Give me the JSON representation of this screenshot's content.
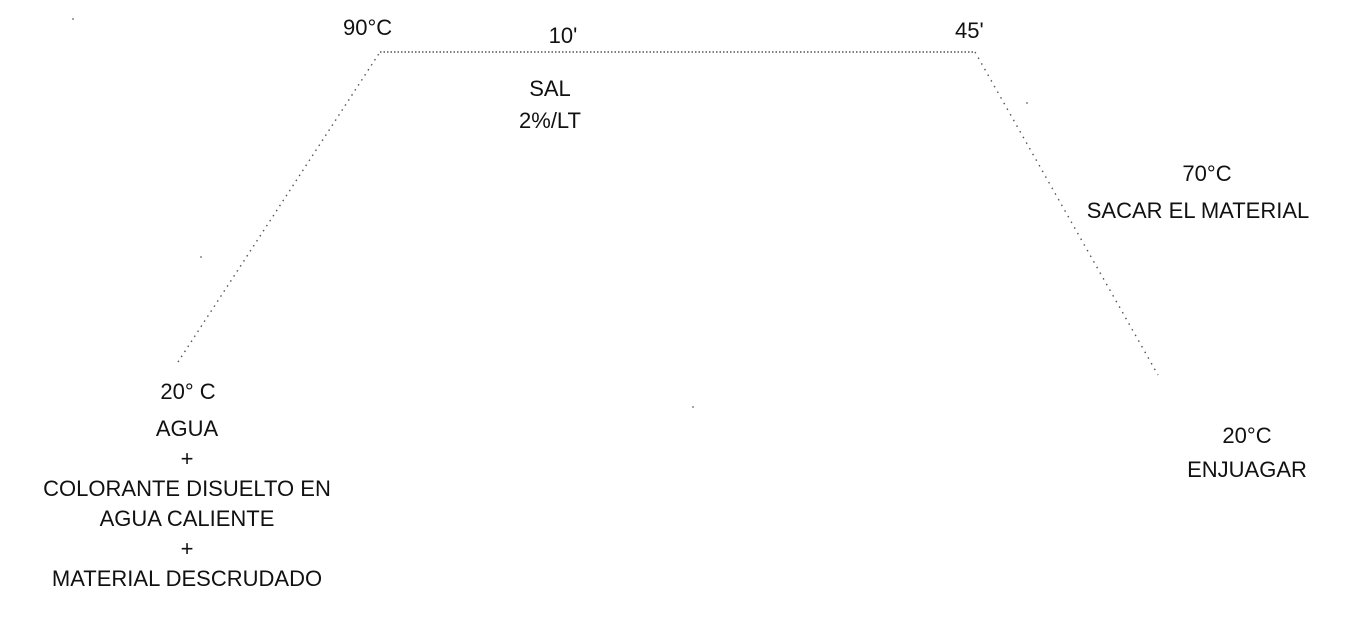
{
  "labels": {
    "peak_temp": "90°C",
    "salt_time": "10'",
    "end_time": "45'",
    "salt": "SAL",
    "salt_dose": "2%/LT",
    "cooldown_temp": "70°C",
    "remove_material": "SACAR EL MATERIAL",
    "start_temp": "20° C",
    "rinse_temp": "20°C",
    "rinse": "ENJUAGAR"
  },
  "start_steps": [
    "AGUA",
    "+",
    "COLORANTE DISUELTO EN",
    "AGUA CALIENTE",
    "+",
    "MATERIAL DESCRUDADO"
  ],
  "colors": {
    "line": "#555555",
    "text": "#111111"
  }
}
